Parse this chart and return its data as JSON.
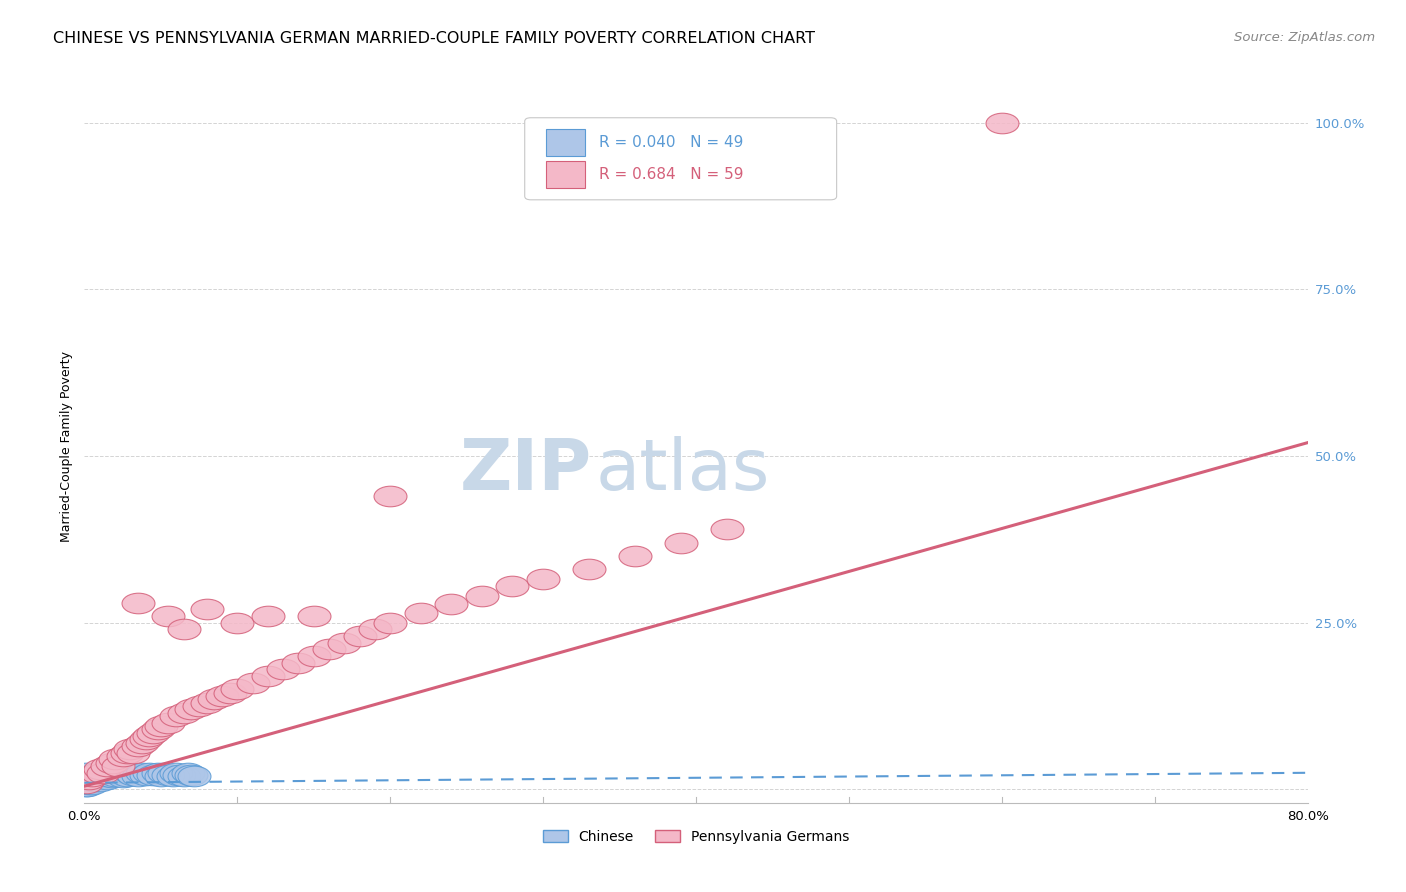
{
  "title": "CHINESE VS PENNSYLVANIA GERMAN MARRIED-COUPLE FAMILY POVERTY CORRELATION CHART",
  "source": "Source: ZipAtlas.com",
  "ylabel": "Married-Couple Family Poverty",
  "xlim": [
    0.0,
    0.8
  ],
  "ylim": [
    -0.02,
    1.05
  ],
  "ytick_positions": [
    0.0,
    0.25,
    0.5,
    0.75,
    1.0
  ],
  "yticklabels": [
    "",
    "25.0%",
    "50.0%",
    "75.0%",
    "100.0%"
  ],
  "grid_color": "#d0d0d0",
  "background_color": "#ffffff",
  "watermark_zip": "ZIP",
  "watermark_atlas": "atlas",
  "watermark_color_zip": "#c8d8e8",
  "watermark_color_atlas": "#c8d8e8",
  "chinese_color": "#aec6e8",
  "chinese_edge_color": "#5b9bd5",
  "pa_german_color": "#f4b8c8",
  "pa_german_edge_color": "#d4607a",
  "chinese_R": 0.04,
  "chinese_N": 49,
  "pa_german_R": 0.684,
  "pa_german_N": 59,
  "legend_label_chinese": "Chinese",
  "legend_label_pa_german": "Pennsylvania Germans",
  "chinese_scatter_x": [
    0.001,
    0.001,
    0.001,
    0.001,
    0.002,
    0.002,
    0.002,
    0.003,
    0.003,
    0.004,
    0.004,
    0.005,
    0.005,
    0.006,
    0.007,
    0.008,
    0.009,
    0.01,
    0.01,
    0.012,
    0.013,
    0.015,
    0.016,
    0.018,
    0.019,
    0.02,
    0.022,
    0.024,
    0.025,
    0.027,
    0.028,
    0.03,
    0.032,
    0.035,
    0.038,
    0.04,
    0.042,
    0.045,
    0.048,
    0.05,
    0.052,
    0.055,
    0.058,
    0.06,
    0.062,
    0.065,
    0.068,
    0.07,
    0.072
  ],
  "chinese_scatter_y": [
    0.005,
    0.01,
    0.018,
    0.025,
    0.005,
    0.012,
    0.02,
    0.008,
    0.015,
    0.01,
    0.018,
    0.008,
    0.016,
    0.012,
    0.02,
    0.015,
    0.022,
    0.012,
    0.025,
    0.018,
    0.022,
    0.015,
    0.02,
    0.018,
    0.025,
    0.02,
    0.025,
    0.022,
    0.018,
    0.025,
    0.02,
    0.025,
    0.022,
    0.02,
    0.025,
    0.022,
    0.025,
    0.022,
    0.025,
    0.02,
    0.025,
    0.022,
    0.02,
    0.025,
    0.022,
    0.02,
    0.025,
    0.022,
    0.02
  ],
  "pa_german_scatter_x": [
    0.001,
    0.003,
    0.005,
    0.008,
    0.01,
    0.012,
    0.015,
    0.018,
    0.02,
    0.022,
    0.025,
    0.028,
    0.03,
    0.032,
    0.035,
    0.038,
    0.04,
    0.042,
    0.045,
    0.048,
    0.05,
    0.055,
    0.06,
    0.065,
    0.07,
    0.075,
    0.08,
    0.085,
    0.09,
    0.095,
    0.1,
    0.11,
    0.12,
    0.13,
    0.14,
    0.15,
    0.16,
    0.17,
    0.18,
    0.19,
    0.2,
    0.22,
    0.24,
    0.26,
    0.28,
    0.3,
    0.33,
    0.36,
    0.39,
    0.42,
    0.035,
    0.055,
    0.065,
    0.08,
    0.1,
    0.12,
    0.15,
    0.2,
    0.6
  ],
  "pa_german_scatter_y": [
    0.01,
    0.015,
    0.02,
    0.025,
    0.03,
    0.025,
    0.035,
    0.04,
    0.045,
    0.035,
    0.05,
    0.055,
    0.06,
    0.055,
    0.065,
    0.07,
    0.075,
    0.08,
    0.085,
    0.09,
    0.095,
    0.1,
    0.11,
    0.115,
    0.12,
    0.125,
    0.13,
    0.135,
    0.14,
    0.145,
    0.15,
    0.16,
    0.17,
    0.18,
    0.19,
    0.2,
    0.21,
    0.22,
    0.23,
    0.24,
    0.25,
    0.265,
    0.278,
    0.29,
    0.305,
    0.315,
    0.33,
    0.35,
    0.37,
    0.39,
    0.28,
    0.26,
    0.24,
    0.27,
    0.25,
    0.26,
    0.26,
    0.44,
    1.0
  ],
  "chinese_trend_x": [
    0.0,
    0.8
  ],
  "chinese_trend_y": [
    0.01,
    0.025
  ],
  "pa_german_trend_x": [
    0.0,
    0.8
  ],
  "pa_german_trend_y": [
    0.005,
    0.52
  ],
  "title_fontsize": 11.5,
  "source_fontsize": 9.5,
  "axis_label_fontsize": 9,
  "tick_label_fontsize": 9.5,
  "legend_fontsize": 11,
  "watermark_fontsize_zip": 52,
  "watermark_fontsize_atlas": 52
}
